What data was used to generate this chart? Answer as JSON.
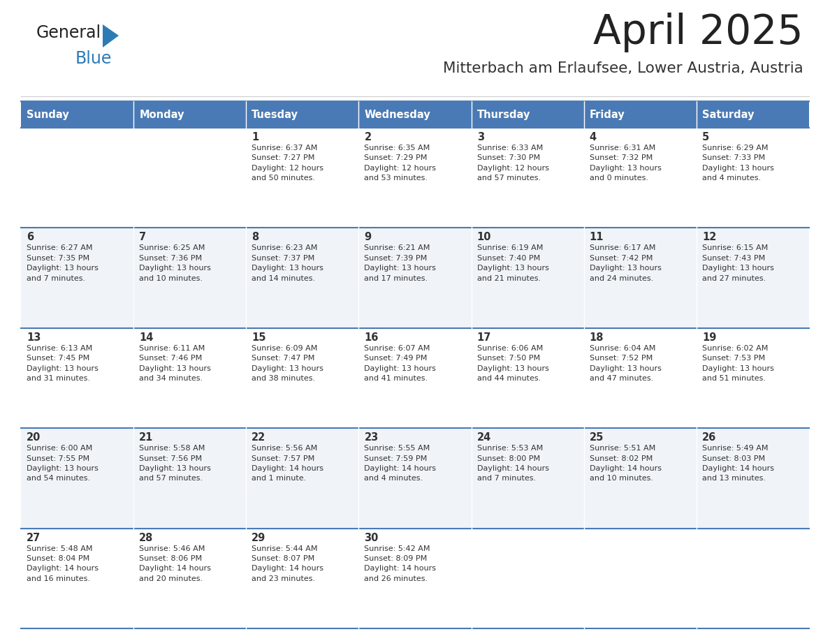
{
  "title": "April 2025",
  "subtitle": "Mitterbach am Erlaufsee, Lower Austria, Austria",
  "days_of_week": [
    "Sunday",
    "Monday",
    "Tuesday",
    "Wednesday",
    "Thursday",
    "Friday",
    "Saturday"
  ],
  "header_bg": "#4a7ab5",
  "header_text": "#ffffff",
  "row_bg_odd": "#f0f4f8",
  "row_bg_even": "#ffffff",
  "cell_text": "#333333",
  "border_color": "#4a7ab5",
  "title_color": "#222222",
  "subtitle_color": "#333333",
  "logo_general_color": "#222222",
  "logo_blue_color": "#2c7bb6",
  "logo_triangle_color": "#2c7bb6",
  "calendar": [
    [
      {
        "day": "",
        "info": ""
      },
      {
        "day": "",
        "info": ""
      },
      {
        "day": "1",
        "info": "Sunrise: 6:37 AM\nSunset: 7:27 PM\nDaylight: 12 hours\nand 50 minutes."
      },
      {
        "day": "2",
        "info": "Sunrise: 6:35 AM\nSunset: 7:29 PM\nDaylight: 12 hours\nand 53 minutes."
      },
      {
        "day": "3",
        "info": "Sunrise: 6:33 AM\nSunset: 7:30 PM\nDaylight: 12 hours\nand 57 minutes."
      },
      {
        "day": "4",
        "info": "Sunrise: 6:31 AM\nSunset: 7:32 PM\nDaylight: 13 hours\nand 0 minutes."
      },
      {
        "day": "5",
        "info": "Sunrise: 6:29 AM\nSunset: 7:33 PM\nDaylight: 13 hours\nand 4 minutes."
      }
    ],
    [
      {
        "day": "6",
        "info": "Sunrise: 6:27 AM\nSunset: 7:35 PM\nDaylight: 13 hours\nand 7 minutes."
      },
      {
        "day": "7",
        "info": "Sunrise: 6:25 AM\nSunset: 7:36 PM\nDaylight: 13 hours\nand 10 minutes."
      },
      {
        "day": "8",
        "info": "Sunrise: 6:23 AM\nSunset: 7:37 PM\nDaylight: 13 hours\nand 14 minutes."
      },
      {
        "day": "9",
        "info": "Sunrise: 6:21 AM\nSunset: 7:39 PM\nDaylight: 13 hours\nand 17 minutes."
      },
      {
        "day": "10",
        "info": "Sunrise: 6:19 AM\nSunset: 7:40 PM\nDaylight: 13 hours\nand 21 minutes."
      },
      {
        "day": "11",
        "info": "Sunrise: 6:17 AM\nSunset: 7:42 PM\nDaylight: 13 hours\nand 24 minutes."
      },
      {
        "day": "12",
        "info": "Sunrise: 6:15 AM\nSunset: 7:43 PM\nDaylight: 13 hours\nand 27 minutes."
      }
    ],
    [
      {
        "day": "13",
        "info": "Sunrise: 6:13 AM\nSunset: 7:45 PM\nDaylight: 13 hours\nand 31 minutes."
      },
      {
        "day": "14",
        "info": "Sunrise: 6:11 AM\nSunset: 7:46 PM\nDaylight: 13 hours\nand 34 minutes."
      },
      {
        "day": "15",
        "info": "Sunrise: 6:09 AM\nSunset: 7:47 PM\nDaylight: 13 hours\nand 38 minutes."
      },
      {
        "day": "16",
        "info": "Sunrise: 6:07 AM\nSunset: 7:49 PM\nDaylight: 13 hours\nand 41 minutes."
      },
      {
        "day": "17",
        "info": "Sunrise: 6:06 AM\nSunset: 7:50 PM\nDaylight: 13 hours\nand 44 minutes."
      },
      {
        "day": "18",
        "info": "Sunrise: 6:04 AM\nSunset: 7:52 PM\nDaylight: 13 hours\nand 47 minutes."
      },
      {
        "day": "19",
        "info": "Sunrise: 6:02 AM\nSunset: 7:53 PM\nDaylight: 13 hours\nand 51 minutes."
      }
    ],
    [
      {
        "day": "20",
        "info": "Sunrise: 6:00 AM\nSunset: 7:55 PM\nDaylight: 13 hours\nand 54 minutes."
      },
      {
        "day": "21",
        "info": "Sunrise: 5:58 AM\nSunset: 7:56 PM\nDaylight: 13 hours\nand 57 minutes."
      },
      {
        "day": "22",
        "info": "Sunrise: 5:56 AM\nSunset: 7:57 PM\nDaylight: 14 hours\nand 1 minute."
      },
      {
        "day": "23",
        "info": "Sunrise: 5:55 AM\nSunset: 7:59 PM\nDaylight: 14 hours\nand 4 minutes."
      },
      {
        "day": "24",
        "info": "Sunrise: 5:53 AM\nSunset: 8:00 PM\nDaylight: 14 hours\nand 7 minutes."
      },
      {
        "day": "25",
        "info": "Sunrise: 5:51 AM\nSunset: 8:02 PM\nDaylight: 14 hours\nand 10 minutes."
      },
      {
        "day": "26",
        "info": "Sunrise: 5:49 AM\nSunset: 8:03 PM\nDaylight: 14 hours\nand 13 minutes."
      }
    ],
    [
      {
        "day": "27",
        "info": "Sunrise: 5:48 AM\nSunset: 8:04 PM\nDaylight: 14 hours\nand 16 minutes."
      },
      {
        "day": "28",
        "info": "Sunrise: 5:46 AM\nSunset: 8:06 PM\nDaylight: 14 hours\nand 20 minutes."
      },
      {
        "day": "29",
        "info": "Sunrise: 5:44 AM\nSunset: 8:07 PM\nDaylight: 14 hours\nand 23 minutes."
      },
      {
        "day": "30",
        "info": "Sunrise: 5:42 AM\nSunset: 8:09 PM\nDaylight: 14 hours\nand 26 minutes."
      },
      {
        "day": "",
        "info": ""
      },
      {
        "day": "",
        "info": ""
      },
      {
        "day": "",
        "info": ""
      }
    ]
  ]
}
